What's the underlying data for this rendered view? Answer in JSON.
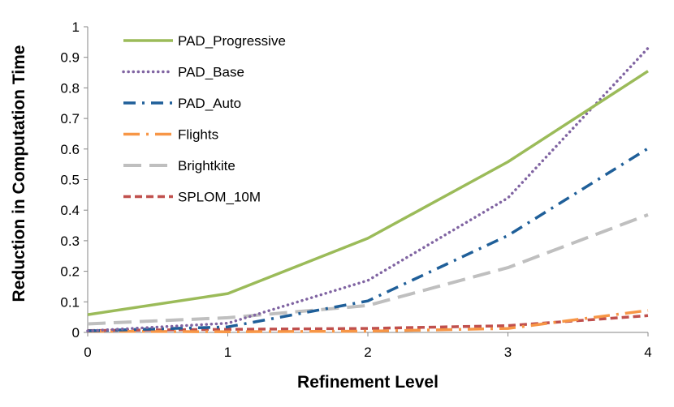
{
  "chart_data": {
    "type": "line",
    "title": "",
    "xlabel": "Refinement Level",
    "ylabel": "Reduction in Computation Time",
    "x": [
      0,
      1,
      2,
      3,
      4
    ],
    "xlim": [
      0,
      4
    ],
    "ylim": [
      0,
      1
    ],
    "x_ticks": [
      "0",
      "1",
      "2",
      "3",
      "4"
    ],
    "y_ticks": [
      "0",
      "0.1",
      "0.2",
      "0.3",
      "0.4",
      "0.5",
      "0.6",
      "0.7",
      "0.8",
      "0.9",
      "1"
    ],
    "grid": false,
    "legend_position": "top-left",
    "series": [
      {
        "name": "PAD_Progressive",
        "values": [
          0.058,
          0.127,
          0.308,
          0.558,
          0.855
        ],
        "color": "#9BBB59",
        "style": "solid"
      },
      {
        "name": "PAD_Base",
        "values": [
          0.005,
          0.03,
          0.17,
          0.44,
          0.93
        ],
        "color": "#8064A2",
        "style": "dotted"
      },
      {
        "name": "PAD_Auto",
        "values": [
          0.005,
          0.018,
          0.103,
          0.317,
          0.602
        ],
        "color": "#1F5F99",
        "style": "dash-dot"
      },
      {
        "name": "Flights",
        "values": [
          0.004,
          0.002,
          0.004,
          0.013,
          0.072
        ],
        "color": "#F79646",
        "style": "long-dash-dot"
      },
      {
        "name": "Brightkite",
        "values": [
          0.028,
          0.048,
          0.088,
          0.212,
          0.385
        ],
        "color": "#BFBFBF",
        "style": "long-dash"
      },
      {
        "name": "SPLOM_10M",
        "values": [
          0.006,
          0.01,
          0.013,
          0.022,
          0.055
        ],
        "color": "#C0504D",
        "style": "dash"
      }
    ]
  }
}
